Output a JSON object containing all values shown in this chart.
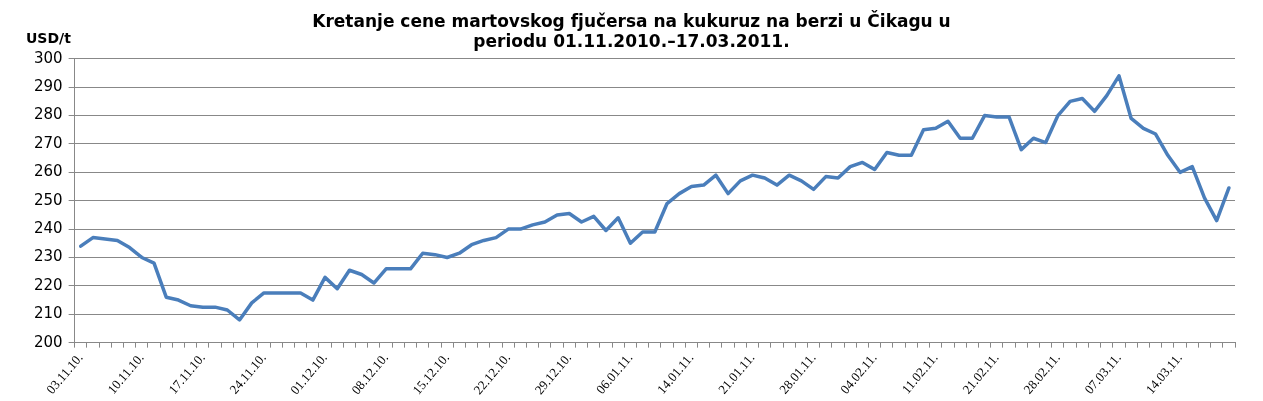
{
  "chart_data": {
    "type": "line",
    "title": "Kretanje cene martovskog fjučersa na kukuruz na berzi u Čikagu u periodu 01.11.2010.–17.03.2011.",
    "ylabel": "USD/t",
    "categories": [
      "03.11.10.",
      null,
      null,
      null,
      null,
      "10.11.10.",
      null,
      null,
      null,
      null,
      "17.11.10.",
      null,
      null,
      null,
      null,
      "24.11.10.",
      null,
      null,
      null,
      null,
      "01.12.10.",
      null,
      null,
      null,
      null,
      "08.12.10.",
      null,
      null,
      null,
      null,
      "15.12.10.",
      null,
      null,
      null,
      null,
      "22.12.10.",
      null,
      null,
      null,
      null,
      "29.12.10.",
      null,
      null,
      null,
      null,
      "06.01.11.",
      null,
      null,
      null,
      null,
      "14.01.11.",
      null,
      null,
      null,
      null,
      "21.01.11.",
      null,
      null,
      null,
      null,
      "28.01.11.",
      null,
      null,
      null,
      null,
      "04.02.11.",
      null,
      null,
      null,
      null,
      "11.02.11.",
      null,
      null,
      null,
      null,
      "21.02.11.",
      null,
      null,
      null,
      null,
      "28.02.11.",
      null,
      null,
      null,
      null,
      "07.03.11.",
      null,
      null,
      null,
      null,
      "14.03.11.",
      null,
      null,
      null,
      null
    ],
    "series": [
      {
        "color": "#4a7ebb",
        "values": [
          234,
          237,
          236.5,
          236,
          233.5,
          230,
          228,
          216,
          215,
          213,
          212.5,
          212.5,
          211.5,
          208,
          214,
          217.5,
          217.5,
          217.5,
          217.5,
          215,
          223,
          219,
          225.5,
          224,
          221,
          226,
          226,
          226,
          231.5,
          231,
          230,
          231.5,
          234.5,
          236,
          237,
          240,
          240,
          241.5,
          242.5,
          245,
          245.5,
          242.5,
          244.5,
          239.5,
          244,
          235,
          239,
          239,
          249,
          252.5,
          255,
          255.5,
          259,
          252.5,
          257,
          259,
          258,
          255.5,
          259,
          257,
          254,
          258.5,
          258,
          262,
          263.5,
          261,
          267,
          266,
          266,
          275,
          275.5,
          278,
          272,
          272,
          280,
          279.5,
          279.5,
          268,
          272,
          270.5,
          280,
          285,
          286,
          281.5,
          287,
          294,
          279,
          275.5,
          273.5,
          266,
          260,
          262,
          251,
          243,
          254.5
        ]
      }
    ],
    "ylim": [
      200,
      300
    ],
    "yticks": [
      200,
      210,
      220,
      230,
      240,
      250,
      260,
      270,
      280,
      290,
      300
    ],
    "grid": "y",
    "legend": false,
    "marker": "none",
    "line_style": "solid"
  }
}
